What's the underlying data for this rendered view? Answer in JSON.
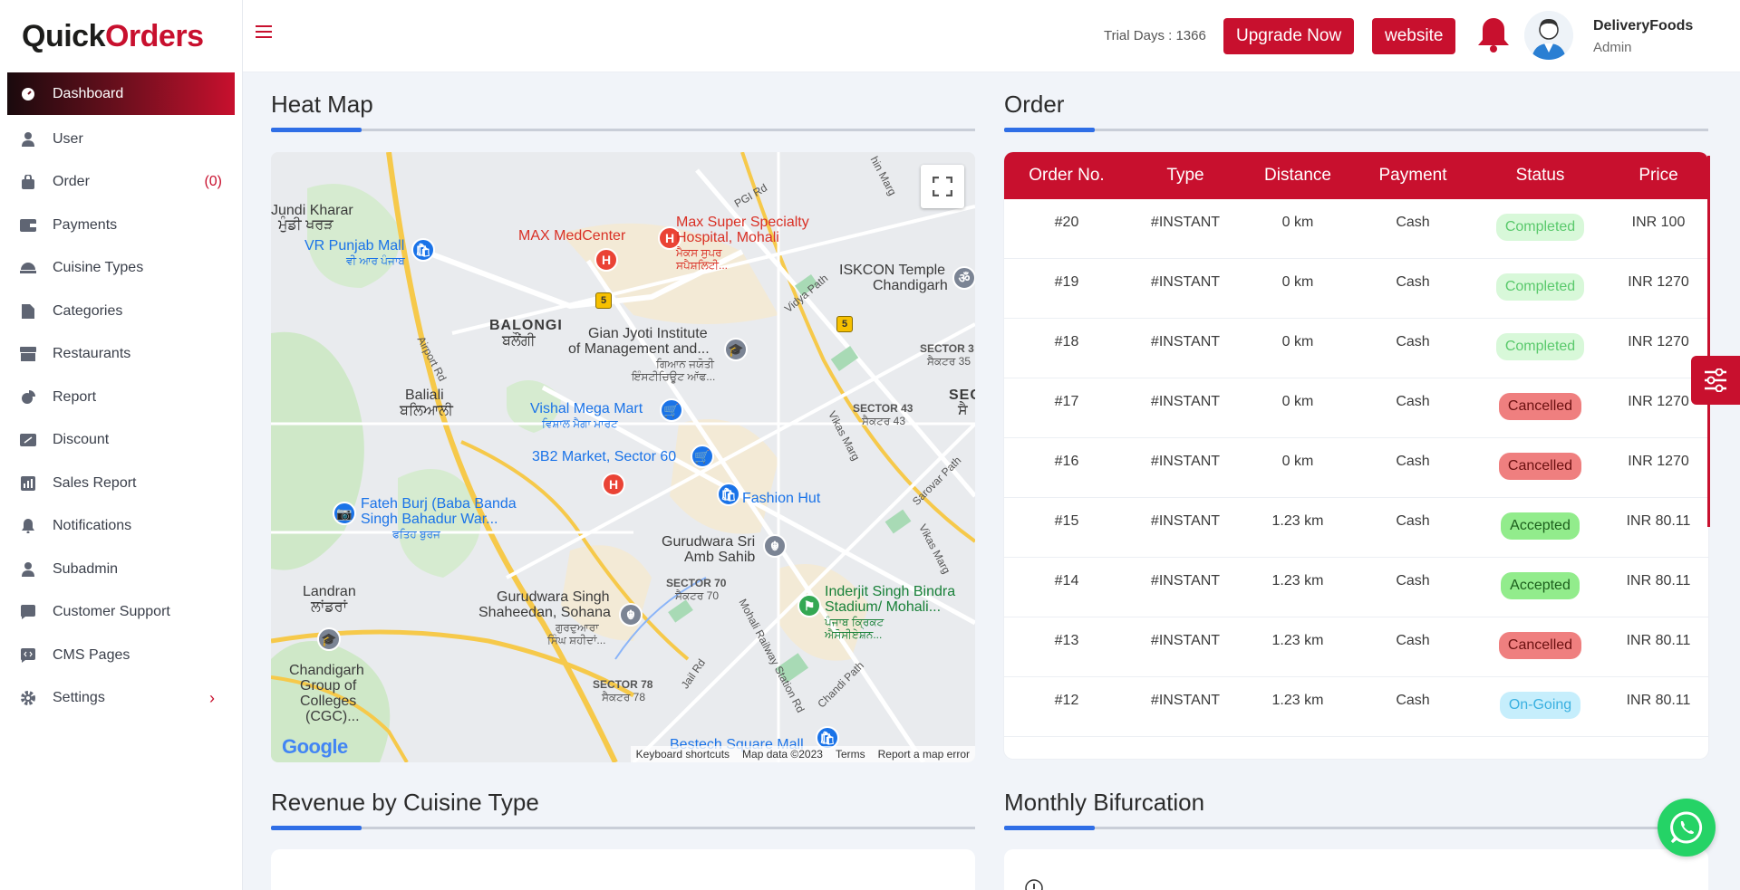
{
  "brand": {
    "part1": "Quick",
    "part2": "Orders"
  },
  "sidebar": {
    "items": [
      {
        "label": "Dashboard",
        "icon": "dashboard-icon"
      },
      {
        "label": "User",
        "icon": "user-icon"
      },
      {
        "label": "Order",
        "icon": "bag-icon",
        "count": "(0)"
      },
      {
        "label": "Payments",
        "icon": "wallet-icon"
      },
      {
        "label": "Cuisine Types",
        "icon": "cuisine-icon"
      },
      {
        "label": "Categories",
        "icon": "file-icon"
      },
      {
        "label": "Restaurants",
        "icon": "store-icon"
      },
      {
        "label": "Report",
        "icon": "report-icon"
      },
      {
        "label": "Discount",
        "icon": "discount-icon"
      },
      {
        "label": "Sales Report",
        "icon": "chart-icon"
      },
      {
        "label": "Notifications",
        "icon": "bell-icon"
      },
      {
        "label": "Subadmin",
        "icon": "user-icon"
      },
      {
        "label": "Customer Support",
        "icon": "support-icon"
      },
      {
        "label": "CMS Pages",
        "icon": "code-icon"
      },
      {
        "label": "Settings",
        "icon": "gear-icon"
      }
    ]
  },
  "header": {
    "trial": "Trial Days : 1366",
    "upgrade_label": "Upgrade Now",
    "website_label": "website",
    "user_name": "DeliveryFoods",
    "user_role": "Admin"
  },
  "sections": {
    "heatmap_title": "Heat Map",
    "order_title": "Order",
    "revenue_title": "Revenue by Cuisine Type",
    "monthly_title": "Monthly Bifurcation"
  },
  "map": {
    "labels": {
      "mundi": "Jundi Kharar",
      "mundi_pa": "ਮੁੰਡੀ ਖਰੜ",
      "vr_mall": "VR Punjab Mall",
      "vr_mall_pa": "ਵੀ ਆਰ ਪੰਜਾਬ",
      "max_med": "MAX MedCenter",
      "max_hosp": "Max Super Specialty",
      "max_hosp2": "Hospital, Mohali",
      "max_pa": "ਮੈਕਸ ਸੁਪਰ",
      "max_pa2": "ਸਪੈਸ਼ਲਿਟੀ...",
      "iskcon": "ISKCON Temple",
      "iskcon2": "Chandigarh",
      "balongi": "BALONGI",
      "balongi_pa": "ਬਲੌਂਗੀ",
      "gian": "Gian Jyoti Institute",
      "gian2": "of Management and...",
      "gian_pa": "ਗਿਆਨ ਜਯੋਤੀ",
      "gian_pa2": "ਇੰਸਟੀਚਿਊਟ ਆੱਫ...",
      "baliali": "Baliali",
      "baliali_pa": "ਬਲਿਆਲੀ",
      "vishal": "Vishal Mega Mart",
      "vishal_pa": "ਵਿਸ਼ਾਲ ਮੈਗਾ ਮਾਰਟ",
      "sector43": "SECTOR 43",
      "sector43_pa": "ਸੈਕਟਰ 43",
      "sector35": "SECTOR 3",
      "sector35_pa": "ਸੈਕਟਰ 35",
      "sec": "SEC",
      "sec_pa": "ਸੈ",
      "b2": "3B2 Market, Sector 60",
      "fashion": "Fashion Hut",
      "fateh": "Fateh Burj (Baba Banda",
      "fateh2": "Singh Bahadur War...",
      "fateh_pa": "ਫਤਿਹ ਬੁਰਜ",
      "gurudwara_amb": "Gurudwara Sri",
      "gurudwara_amb2": "Amb Sahib",
      "sector70": "SECTOR 70",
      "sector70_pa": "ਸੈਕਟਰ 70",
      "landran": "Landran",
      "landran_pa": "ਲਾਂਡਰਾਂ",
      "gurudwara_s": "Gurudwara Singh",
      "gurudwara_s2": "Shaheedan, Sohana",
      "gurudwara_s_pa": "ਗੁਰਦੁਆਰਾ",
      "gurudwara_s_pa2": "ਸਿੰਘ ਸ਼ਹੀਦਾਂ...",
      "inderjit": "Inderjit Singh Bindra",
      "inderjit2": "Stadium/ Mohali...",
      "inderjit_pa": "ਪੰਜਾਬ ਕ੍ਰਿਕਟ",
      "inderjit_pa2": "ਐਸੋਸੀਏਸ਼ਨ...",
      "cgc": "Chandigarh",
      "cgc2": "Group of",
      "cgc3": "Colleges",
      "cgc4": "(CGC)...",
      "sector78": "SECTOR 78",
      "sector78_pa": "ਸੈਕਟਰ 78",
      "bestech": "Bestech Square Mall",
      "pgi": "PGI Rd",
      "airport": "Airport Rd",
      "vidya": "Vidya Path",
      "vikas": "Vikas Marg",
      "vikas2": "Vikas Marg",
      "sarovar": "Sarovar Path",
      "jail": "Jail Rd",
      "mohali_rs": "Mohali Railway Station Rd",
      "chandi": "Chandi Path",
      "marg": "hin Marg"
    },
    "highway": "5",
    "footer": [
      "Keyboard shortcuts",
      "Map data ©2023",
      "Terms",
      "Report a map error"
    ],
    "google": "Google"
  },
  "orders": {
    "headers": [
      "Order No.",
      "Type",
      "Distance",
      "Payment",
      "Status",
      "Price"
    ],
    "rows": [
      {
        "no": "#20",
        "type": "#INSTANT",
        "distance": "0 km",
        "payment": "Cash",
        "status": "Completed",
        "status_class": "completed",
        "price": "INR 100"
      },
      {
        "no": "#19",
        "type": "#INSTANT",
        "distance": "0 km",
        "payment": "Cash",
        "status": "Completed",
        "status_class": "completed",
        "price": "INR 1270"
      },
      {
        "no": "#18",
        "type": "#INSTANT",
        "distance": "0 km",
        "payment": "Cash",
        "status": "Completed",
        "status_class": "completed",
        "price": "INR 1270"
      },
      {
        "no": "#17",
        "type": "#INSTANT",
        "distance": "0 km",
        "payment": "Cash",
        "status": "Cancelled",
        "status_class": "cancelled",
        "price": "INR 1270"
      },
      {
        "no": "#16",
        "type": "#INSTANT",
        "distance": "0 km",
        "payment": "Cash",
        "status": "Cancelled",
        "status_class": "cancelled",
        "price": "INR 1270"
      },
      {
        "no": "#15",
        "type": "#INSTANT",
        "distance": "1.23 km",
        "payment": "Cash",
        "status": "Accepted",
        "status_class": "accepted",
        "price": "INR 80.11"
      },
      {
        "no": "#14",
        "type": "#INSTANT",
        "distance": "1.23 km",
        "payment": "Cash",
        "status": "Accepted",
        "status_class": "accepted",
        "price": "INR 80.11"
      },
      {
        "no": "#13",
        "type": "#INSTANT",
        "distance": "1.23 km",
        "payment": "Cash",
        "status": "Cancelled",
        "status_class": "cancelled",
        "price": "INR 80.11"
      },
      {
        "no": "#12",
        "type": "#INSTANT",
        "distance": "1.23 km",
        "payment": "Cash",
        "status": "On-Going",
        "status_class": "ongoing",
        "price": "INR 80.11"
      }
    ]
  },
  "colors": {
    "brand_red": "#c8102e",
    "accent_blue": "#2f6ee6"
  }
}
